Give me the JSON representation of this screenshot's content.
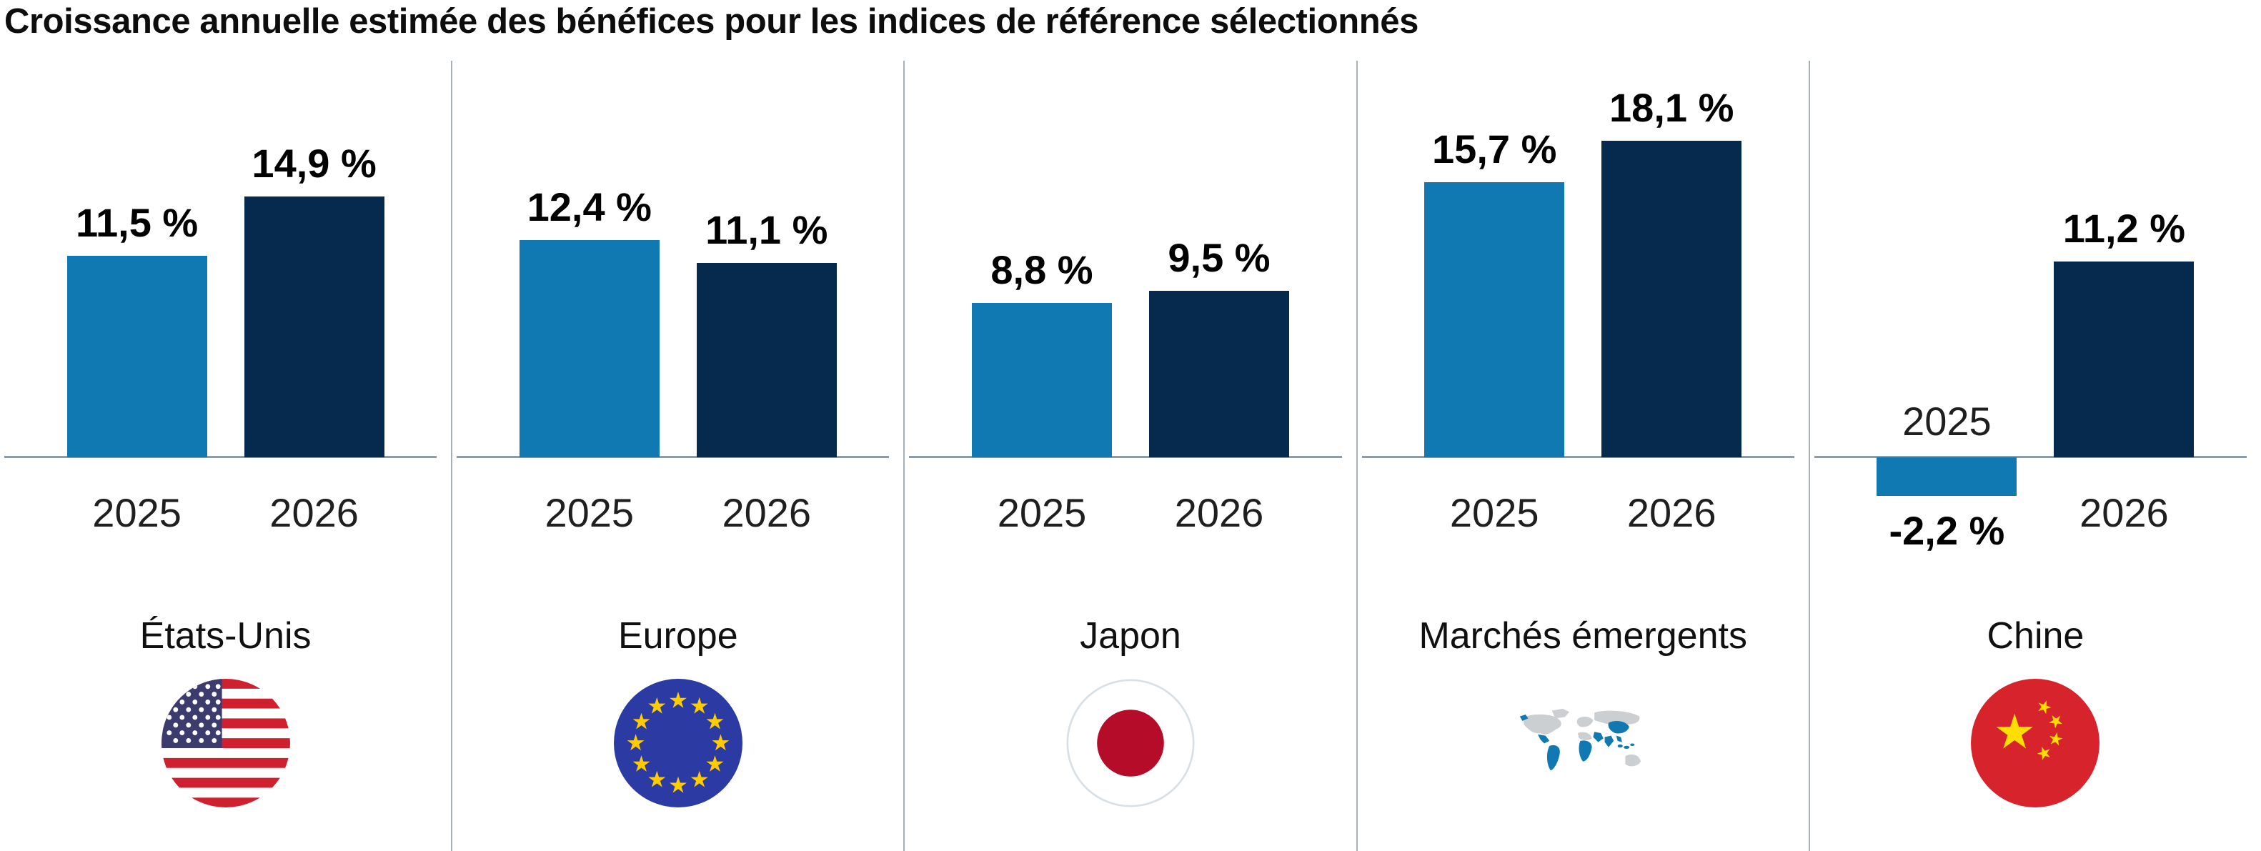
{
  "title": "Croissance annuelle estimée des bénéfices pour les indices de référence sélectionnés",
  "colors": {
    "bar_2025": "#1179b2",
    "bar_2026": "#052a4e",
    "axis": "#8d9ca6",
    "divider": "#a6b0b8"
  },
  "chart_data": {
    "type": "bar",
    "title": "Croissance annuelle estimée des bénéfices pour les indices de référence sélectionnés",
    "categories": [
      "États-Unis",
      "Europe",
      "Japon",
      "Marchés émergents",
      "Chine"
    ],
    "series": [
      {
        "name": "2025",
        "values": [
          11.5,
          12.4,
          8.8,
          15.7,
          -2.2
        ]
      },
      {
        "name": "2026",
        "values": [
          14.9,
          11.1,
          9.5,
          18.1,
          11.2
        ]
      }
    ],
    "value_labels": [
      [
        "11,5 %",
        "14,9 %"
      ],
      [
        "12,4 %",
        "11,1 %"
      ],
      [
        "8,8 %",
        "9,5 %"
      ],
      [
        "15,7 %",
        "18,1 %"
      ],
      [
        "-2,2 %",
        "11,2 %"
      ]
    ],
    "unit": "%",
    "ylim": [
      -3,
      20
    ],
    "grid": false,
    "legend_position": "none",
    "x_tick_labels_per_group": [
      "2025",
      "2026"
    ]
  },
  "panels": [
    {
      "label": "États-Unis",
      "flag_icon": "us-flag-icon",
      "bars": [
        {
          "year": "2025",
          "value": 11.5,
          "value_label": "11,5 %"
        },
        {
          "year": "2026",
          "value": 14.9,
          "value_label": "14,9 %"
        }
      ]
    },
    {
      "label": "Europe",
      "flag_icon": "eu-flag-icon",
      "bars": [
        {
          "year": "2025",
          "value": 12.4,
          "value_label": "12,4 %"
        },
        {
          "year": "2026",
          "value": 11.1,
          "value_label": "11,1 %"
        }
      ]
    },
    {
      "label": "Japon",
      "flag_icon": "japan-flag-icon",
      "bars": [
        {
          "year": "2025",
          "value": 8.8,
          "value_label": "8,8 %"
        },
        {
          "year": "2026",
          "value": 9.5,
          "value_label": "9,5 %"
        }
      ]
    },
    {
      "label": "Marchés émergents",
      "flag_icon": "emerging-markets-map-icon",
      "bars": [
        {
          "year": "2025",
          "value": 15.7,
          "value_label": "15,7 %"
        },
        {
          "year": "2026",
          "value": 18.1,
          "value_label": "18,1 %"
        }
      ]
    },
    {
      "label": "Chine",
      "flag_icon": "china-flag-icon",
      "bars": [
        {
          "year": "2025",
          "value": -2.2,
          "value_label": "-2,2 %"
        },
        {
          "year": "2026",
          "value": 11.2,
          "value_label": "11,2 %"
        }
      ]
    }
  ]
}
